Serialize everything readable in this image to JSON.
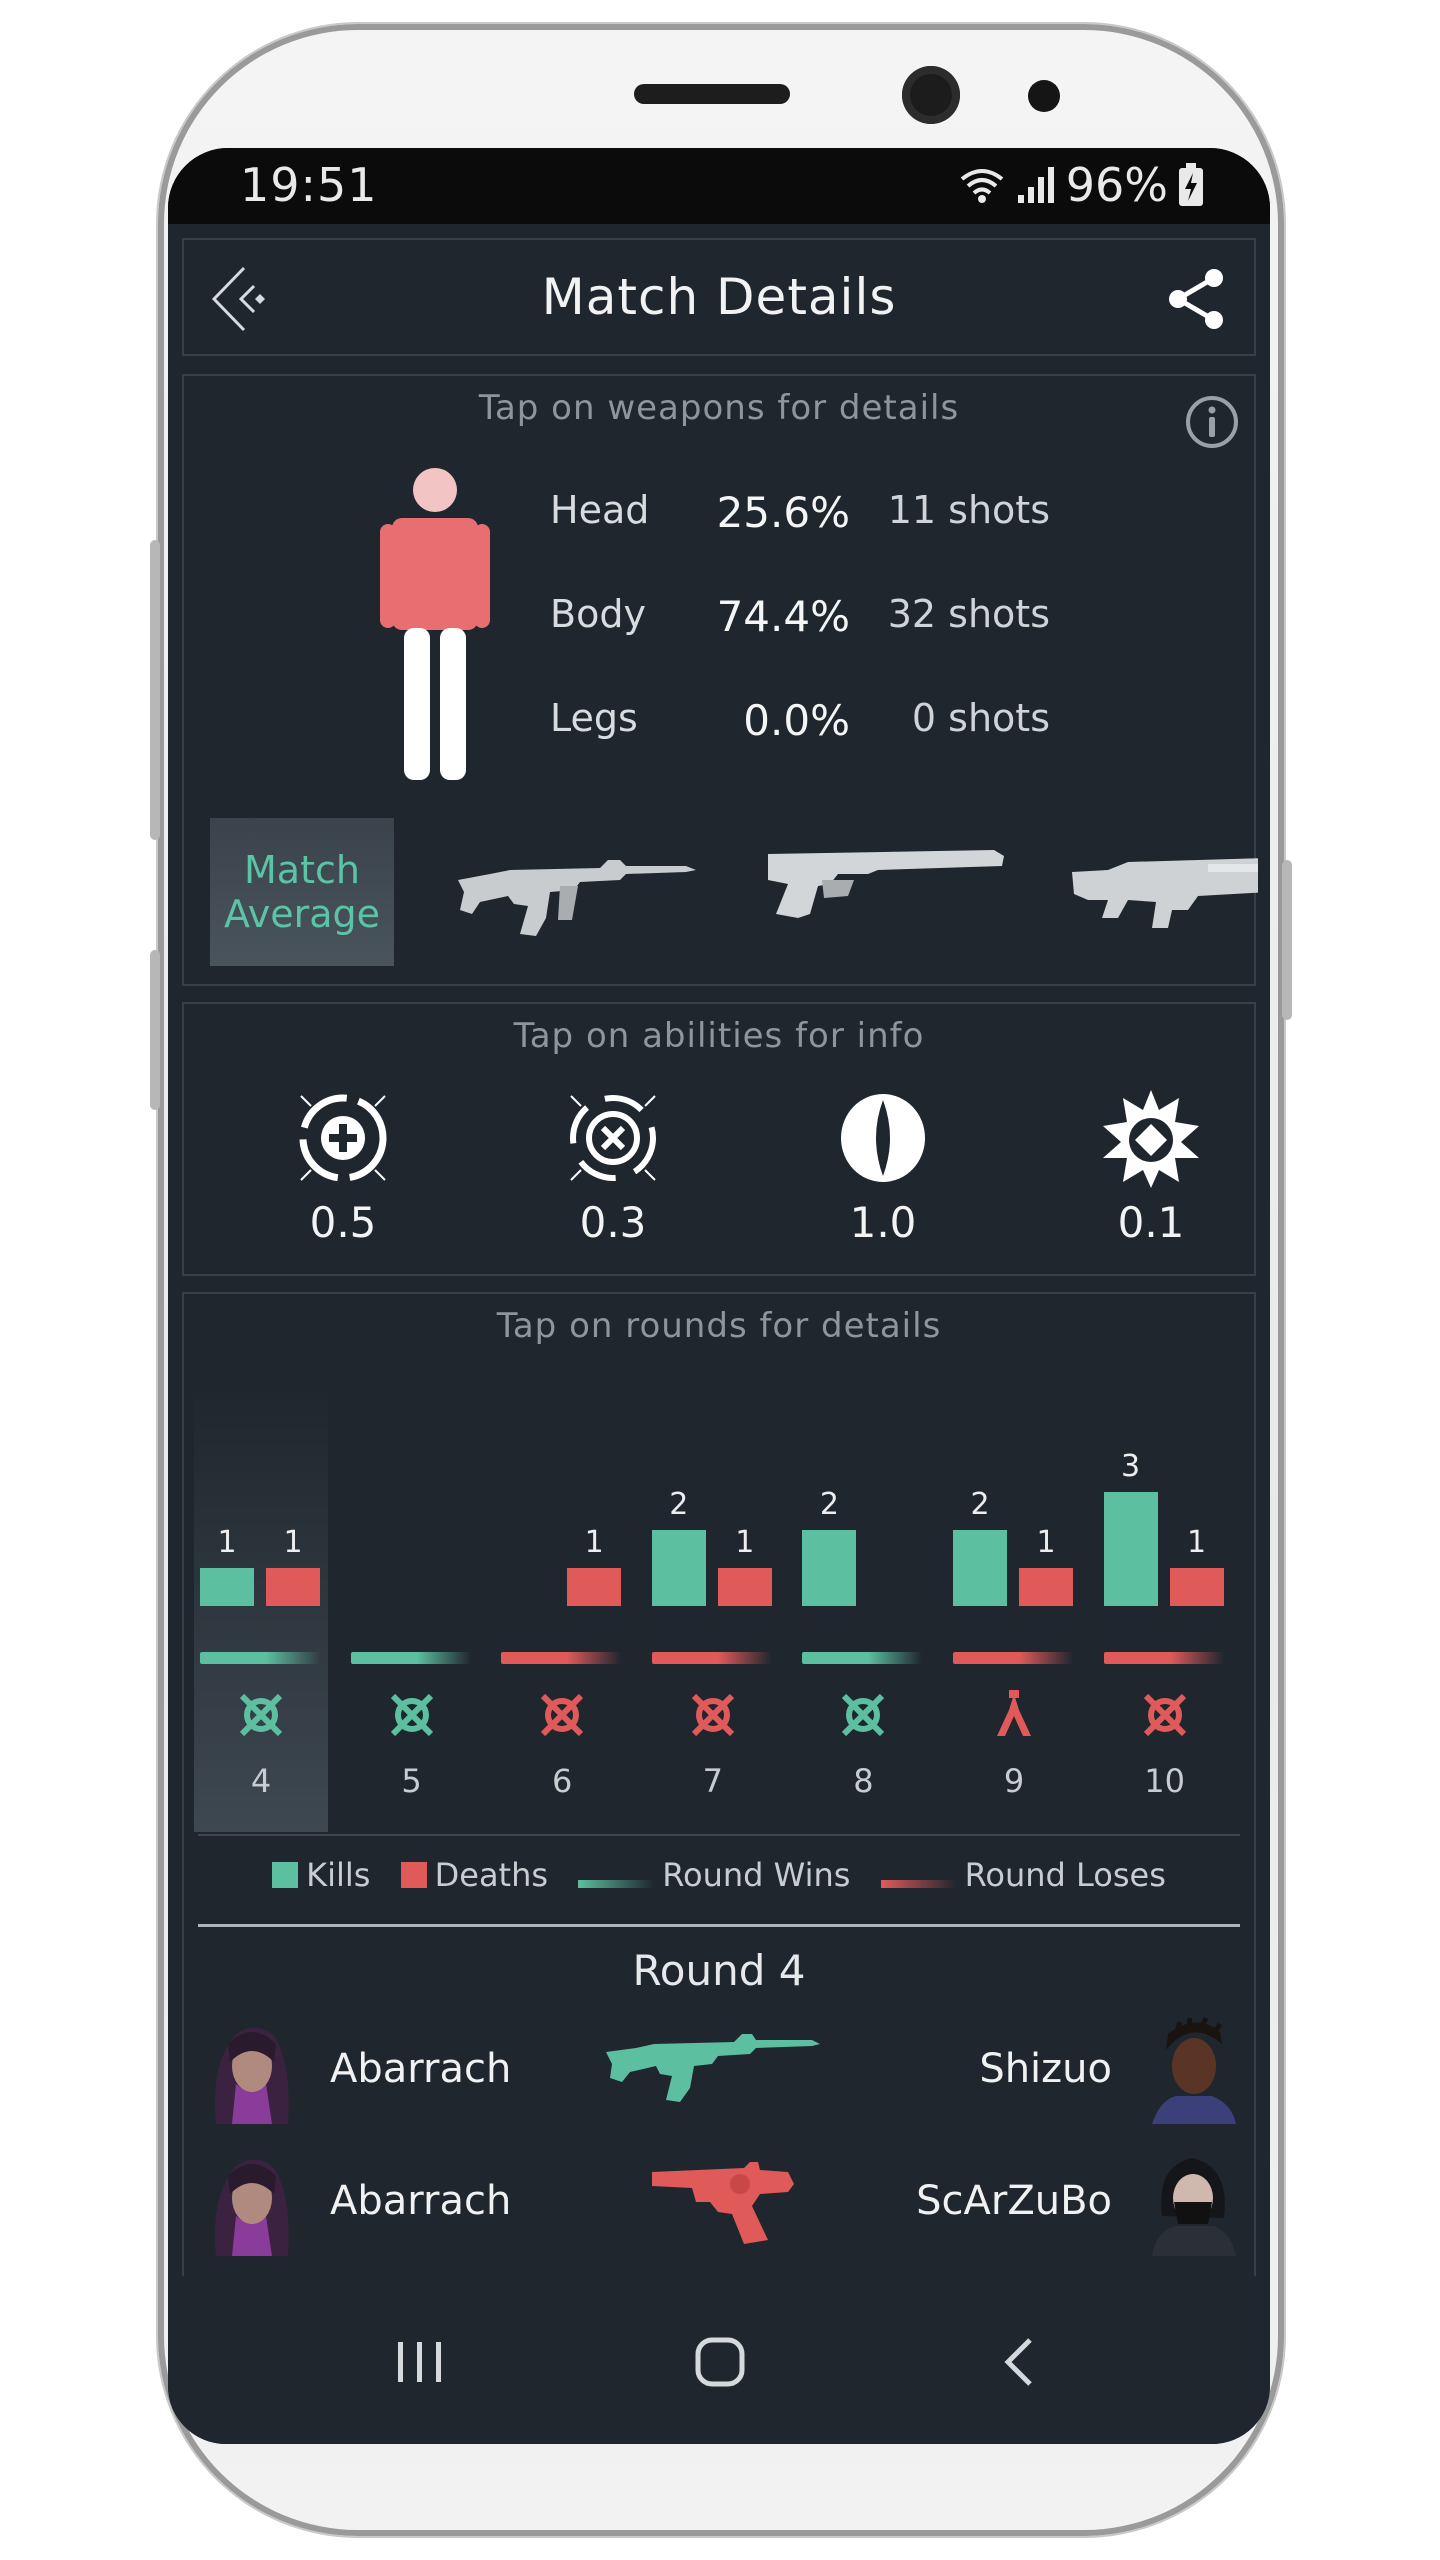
{
  "status_bar": {
    "time": "19:51",
    "battery": "96%"
  },
  "header": {
    "title": "Match Details"
  },
  "weapons_card": {
    "hint": "Tap on weapons for details",
    "rows": [
      {
        "part": "Head",
        "pct": "25.6%",
        "shots": "11 shots"
      },
      {
        "part": "Body",
        "pct": "74.4%",
        "shots": "32 shots"
      },
      {
        "part": "Legs",
        "pct": "0.0%",
        "shots": "0 shots"
      }
    ],
    "match_average_line1": "Match",
    "match_average_line2": "Average"
  },
  "abilities_card": {
    "hint": "Tap on abilities for info",
    "values": [
      "0.5",
      "0.3",
      "1.0",
      "0.1"
    ]
  },
  "rounds_card": {
    "hint": "Tap on rounds for details",
    "legend": {
      "kills": "Kills",
      "deaths": "Deaths",
      "wins": "Round Wins",
      "loses": "Round Loses"
    },
    "round_title": "Round 4",
    "duels": [
      {
        "left": "Abarrach",
        "right": "Shizuo",
        "outcome": "kill"
      },
      {
        "left": "Abarrach",
        "right": "ScArZuBo",
        "outcome": "death"
      }
    ]
  },
  "colors": {
    "kills": "#5cbf9f",
    "deaths": "#e05a5a",
    "background": "#1f262e"
  },
  "chart_data": {
    "type": "bar",
    "categories": [
      "4",
      "5",
      "6",
      "7",
      "8",
      "9",
      "10"
    ],
    "series": [
      {
        "name": "Kills",
        "values": [
          1,
          0,
          0,
          2,
          2,
          2,
          3
        ]
      },
      {
        "name": "Deaths",
        "values": [
          1,
          0,
          1,
          1,
          0,
          1,
          1
        ]
      }
    ],
    "round_result": [
      "win",
      "win",
      "lose",
      "lose",
      "win",
      "lose",
      "lose"
    ],
    "round_icon": [
      "eliminated",
      "eliminated",
      "eliminated",
      "eliminated",
      "eliminated",
      "defused",
      "eliminated"
    ],
    "selected": "4"
  }
}
